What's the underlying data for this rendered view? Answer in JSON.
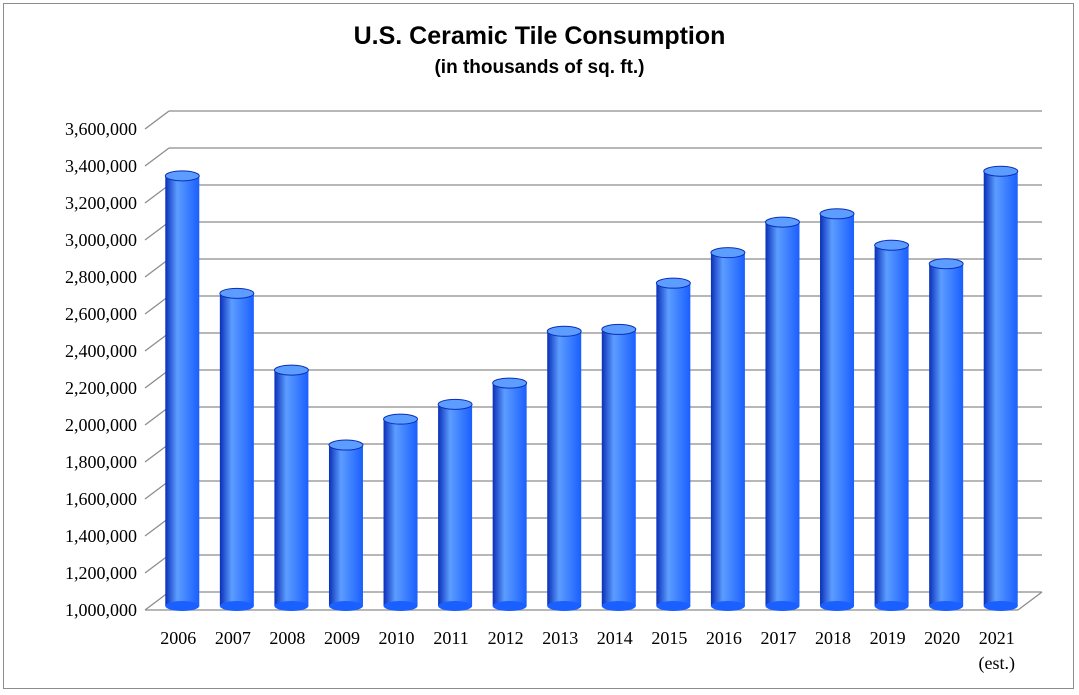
{
  "chart_data": {
    "type": "bar",
    "title": "U.S. Ceramic Tile Consumption",
    "subtitle": "(in thousands of sq. ft.)",
    "categories": [
      "2006",
      "2007",
      "2008",
      "2009",
      "2010",
      "2011",
      "2012",
      "2013",
      "2014",
      "2015",
      "2016",
      "2017",
      "2018",
      "2019",
      "2020",
      "2021"
    ],
    "category_sublabels": [
      "",
      "",
      "",
      "",
      "",
      "",
      "",
      "",
      "",
      "",
      "",
      "",
      "",
      "",
      "",
      "(est.)"
    ],
    "values": [
      3325000,
      2690000,
      2275000,
      1870000,
      2010000,
      2090000,
      2205000,
      2485000,
      2495000,
      2745000,
      2910000,
      3075000,
      3120000,
      2950000,
      2850000,
      3350000
    ],
    "ylim": [
      1000000,
      3600000
    ],
    "yticks": [
      1000000,
      1200000,
      1400000,
      1600000,
      1800000,
      2000000,
      2200000,
      2400000,
      2600000,
      2800000,
      3000000,
      3200000,
      3400000,
      3600000
    ],
    "ytick_labels": [
      "1,000,000",
      "1,200,000",
      "1,400,000",
      "1,600,000",
      "1,800,000",
      "2,000,000",
      "2,200,000",
      "2,400,000",
      "2,600,000",
      "2,800,000",
      "3,000,000",
      "3,200,000",
      "3,400,000",
      "3,600,000"
    ],
    "xlabel": "",
    "ylabel": "",
    "grid": true,
    "legend": "none",
    "bar_color": "#1a5fff",
    "bar_dark_color": "#0a2fb8",
    "bar_light_color": "#5c9dff"
  }
}
